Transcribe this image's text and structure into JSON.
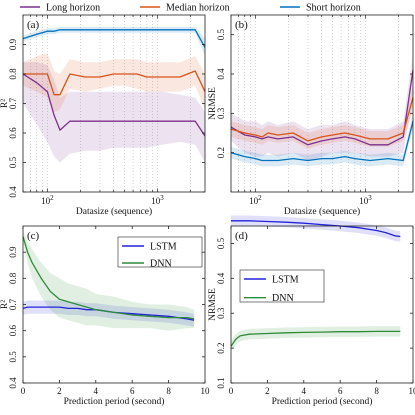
{
  "figure": {
    "legend_top": [
      {
        "label": "Long horizon",
        "color": "#7e2f8e"
      },
      {
        "label": "Median horizon",
        "color": "#d95319"
      },
      {
        "label": "Short horizon",
        "color": "#0072bd"
      }
    ]
  },
  "chart_data": [
    {
      "type": "line",
      "panel_label": "(a)",
      "xlabel": "Datasize (sequence)",
      "ylabel": "R²",
      "xscale": "log",
      "xlim": [
        60,
        2700
      ],
      "ylim": [
        0.4,
        1.0
      ],
      "xticks": [
        {
          "v": 100,
          "b": "10",
          "e": "2"
        },
        {
          "v": 1000,
          "b": "10",
          "e": "3"
        }
      ],
      "yticks": [
        0.4,
        0.5,
        0.6,
        0.7,
        0.8,
        0.9
      ],
      "grid": "vertical dotted",
      "legend": "top, shared",
      "x": [
        60,
        80,
        100,
        115,
        130,
        160,
        220,
        300,
        400,
        500,
        650,
        800,
        1100,
        1600,
        2200,
        2700
      ],
      "series": [
        {
          "name": "Long horizon",
          "color": "#7e2f8e",
          "values": [
            0.8,
            0.77,
            0.74,
            0.66,
            0.61,
            0.64,
            0.64,
            0.64,
            0.64,
            0.64,
            0.64,
            0.64,
            0.64,
            0.64,
            0.64,
            0.59
          ],
          "lower": [
            0.7,
            0.63,
            0.57,
            0.52,
            0.5,
            0.53,
            0.54,
            0.54,
            0.55,
            0.55,
            0.55,
            0.55,
            0.56,
            0.57,
            0.56,
            0.5
          ],
          "upper": [
            0.84,
            0.84,
            0.83,
            0.78,
            0.72,
            0.74,
            0.74,
            0.74,
            0.74,
            0.74,
            0.74,
            0.74,
            0.74,
            0.73,
            0.72,
            0.67
          ]
        },
        {
          "name": "Median horizon",
          "color": "#d95319",
          "values": [
            0.8,
            0.8,
            0.8,
            0.73,
            0.73,
            0.8,
            0.79,
            0.79,
            0.8,
            0.8,
            0.8,
            0.79,
            0.79,
            0.79,
            0.81,
            0.74
          ],
          "lower": [
            0.76,
            0.74,
            0.72,
            0.67,
            0.68,
            0.75,
            0.74,
            0.75,
            0.76,
            0.76,
            0.75,
            0.74,
            0.74,
            0.74,
            0.76,
            0.68
          ],
          "upper": [
            0.84,
            0.86,
            0.87,
            0.81,
            0.8,
            0.85,
            0.84,
            0.84,
            0.85,
            0.85,
            0.85,
            0.84,
            0.84,
            0.84,
            0.86,
            0.8
          ]
        },
        {
          "name": "Short horizon",
          "color": "#0072bd",
          "values": [
            0.92,
            0.935,
            0.945,
            0.945,
            0.95,
            0.95,
            0.95,
            0.95,
            0.95,
            0.95,
            0.95,
            0.95,
            0.95,
            0.95,
            0.95,
            0.89
          ],
          "lower": [
            0.91,
            0.925,
            0.935,
            0.935,
            0.94,
            0.94,
            0.94,
            0.94,
            0.94,
            0.94,
            0.94,
            0.94,
            0.94,
            0.94,
            0.94,
            0.86
          ],
          "upper": [
            0.93,
            0.945,
            0.955,
            0.955,
            0.96,
            0.96,
            0.96,
            0.96,
            0.96,
            0.96,
            0.96,
            0.96,
            0.96,
            0.96,
            0.96,
            0.92
          ]
        }
      ]
    },
    {
      "type": "line",
      "panel_label": "(b)",
      "xlabel": "Datasize (sequence)",
      "ylabel": "NRMSE",
      "xscale": "log",
      "xlim": [
        60,
        2700
      ],
      "ylim": [
        0.1,
        0.55
      ],
      "xticks": [
        {
          "v": 100,
          "b": "10",
          "e": "2"
        },
        {
          "v": 1000,
          "b": "10",
          "e": "3"
        }
      ],
      "yticks": [
        0.2,
        0.3,
        0.4,
        0.5
      ],
      "grid": "vertical dotted",
      "legend": "top, shared",
      "x": [
        60,
        80,
        100,
        115,
        130,
        160,
        220,
        300,
        400,
        500,
        650,
        800,
        1100,
        1600,
        2200,
        2700
      ],
      "series": [
        {
          "name": "Long horizon",
          "color": "#7e2f8e",
          "values": [
            0.265,
            0.245,
            0.24,
            0.235,
            0.24,
            0.235,
            0.24,
            0.22,
            0.23,
            0.235,
            0.24,
            0.235,
            0.22,
            0.22,
            0.24,
            0.41
          ],
          "lower": [
            0.23,
            0.2,
            0.19,
            0.19,
            0.2,
            0.19,
            0.2,
            0.18,
            0.19,
            0.2,
            0.2,
            0.2,
            0.19,
            0.19,
            0.2,
            0.33
          ],
          "upper": [
            0.3,
            0.28,
            0.28,
            0.27,
            0.28,
            0.27,
            0.28,
            0.26,
            0.27,
            0.27,
            0.28,
            0.27,
            0.26,
            0.26,
            0.28,
            0.45
          ]
        },
        {
          "name": "Median horizon",
          "color": "#d95319",
          "values": [
            0.26,
            0.25,
            0.245,
            0.24,
            0.25,
            0.245,
            0.25,
            0.23,
            0.24,
            0.245,
            0.25,
            0.245,
            0.235,
            0.235,
            0.25,
            0.34
          ],
          "lower": [
            0.24,
            0.23,
            0.225,
            0.22,
            0.23,
            0.225,
            0.23,
            0.21,
            0.22,
            0.225,
            0.23,
            0.225,
            0.215,
            0.215,
            0.23,
            0.31
          ],
          "upper": [
            0.28,
            0.27,
            0.265,
            0.26,
            0.27,
            0.265,
            0.27,
            0.25,
            0.26,
            0.265,
            0.27,
            0.265,
            0.255,
            0.255,
            0.27,
            0.37
          ]
        },
        {
          "name": "Short horizon",
          "color": "#0072bd",
          "values": [
            0.2,
            0.19,
            0.185,
            0.18,
            0.18,
            0.18,
            0.185,
            0.18,
            0.185,
            0.185,
            0.19,
            0.185,
            0.18,
            0.185,
            0.18,
            0.28
          ],
          "lower": [
            0.185,
            0.175,
            0.17,
            0.165,
            0.165,
            0.165,
            0.17,
            0.165,
            0.17,
            0.17,
            0.175,
            0.17,
            0.165,
            0.17,
            0.165,
            0.26
          ],
          "upper": [
            0.215,
            0.205,
            0.2,
            0.195,
            0.195,
            0.195,
            0.2,
            0.195,
            0.2,
            0.2,
            0.205,
            0.2,
            0.195,
            0.2,
            0.195,
            0.3
          ]
        }
      ]
    },
    {
      "type": "line",
      "panel_label": "(c)",
      "xlabel": "Prediction period (second)",
      "ylabel": "R²",
      "xlim": [
        0,
        10
      ],
      "ylim": [
        0.4,
        1.0
      ],
      "xticks": [
        0,
        2,
        4,
        6,
        8,
        10
      ],
      "yticks": [
        0.4,
        0.5,
        0.6,
        0.7,
        0.8,
        0.9
      ],
      "grid": "off",
      "legend": "top-right",
      "x": [
        0,
        0.25,
        0.5,
        1,
        1.5,
        2,
        2.5,
        3,
        3.5,
        4,
        5,
        6,
        7,
        8,
        9,
        9.4
      ],
      "series": [
        {
          "name": "LSTM",
          "color": "#2222dd",
          "values": [
            0.685,
            0.69,
            0.69,
            0.69,
            0.69,
            0.69,
            0.685,
            0.685,
            0.68,
            0.68,
            0.67,
            0.665,
            0.66,
            0.655,
            0.645,
            0.64
          ],
          "lower": [
            0.66,
            0.665,
            0.665,
            0.665,
            0.665,
            0.665,
            0.66,
            0.66,
            0.655,
            0.655,
            0.645,
            0.64,
            0.635,
            0.63,
            0.62,
            0.615
          ],
          "upper": [
            0.71,
            0.715,
            0.715,
            0.715,
            0.715,
            0.715,
            0.71,
            0.71,
            0.705,
            0.705,
            0.695,
            0.69,
            0.685,
            0.68,
            0.67,
            0.665
          ]
        },
        {
          "name": "DNN",
          "color": "#2e8b3a",
          "values": [
            0.96,
            0.9,
            0.86,
            0.8,
            0.75,
            0.72,
            0.71,
            0.7,
            0.69,
            0.68,
            0.67,
            0.66,
            0.655,
            0.65,
            0.65,
            0.645
          ],
          "lower": [
            0.94,
            0.86,
            0.8,
            0.73,
            0.68,
            0.65,
            0.64,
            0.63,
            0.62,
            0.62,
            0.61,
            0.61,
            0.61,
            0.6,
            0.61,
            0.61
          ],
          "upper": [
            0.98,
            0.94,
            0.91,
            0.86,
            0.82,
            0.8,
            0.78,
            0.77,
            0.76,
            0.74,
            0.73,
            0.71,
            0.7,
            0.7,
            0.69,
            0.68
          ]
        }
      ]
    },
    {
      "type": "line",
      "panel_label": "(d)",
      "xlabel": "Prediction period (second)",
      "ylabel": "NRMSE",
      "xlim": [
        0,
        10
      ],
      "ylim": [
        0.1,
        0.55
      ],
      "xticks": [
        0,
        2,
        4,
        6,
        8,
        10
      ],
      "yticks": [
        0.1,
        0.2,
        0.3,
        0.4,
        0.5
      ],
      "grid": "off",
      "legend": "center",
      "x": [
        0,
        0.25,
        0.5,
        1,
        2,
        3,
        4,
        5,
        6,
        7,
        8,
        8.5,
        9,
        9.3
      ],
      "series": [
        {
          "name": "LSTM",
          "color": "#2222dd",
          "values": [
            0.565,
            0.565,
            0.565,
            0.565,
            0.563,
            0.561,
            0.558,
            0.554,
            0.55,
            0.545,
            0.537,
            0.531,
            0.522,
            0.52
          ],
          "lower": [
            0.55,
            0.55,
            0.55,
            0.55,
            0.548,
            0.546,
            0.543,
            0.539,
            0.535,
            0.53,
            0.522,
            0.516,
            0.507,
            0.505
          ],
          "upper": [
            0.58,
            0.58,
            0.58,
            0.58,
            0.578,
            0.576,
            0.573,
            0.569,
            0.565,
            0.56,
            0.552,
            0.546,
            0.537,
            0.535
          ]
        },
        {
          "name": "DNN",
          "color": "#2e8b3a",
          "values": [
            0.205,
            0.225,
            0.235,
            0.24,
            0.242,
            0.244,
            0.245,
            0.246,
            0.247,
            0.247,
            0.248,
            0.248,
            0.248,
            0.248
          ],
          "lower": [
            0.19,
            0.21,
            0.22,
            0.225,
            0.227,
            0.229,
            0.23,
            0.231,
            0.232,
            0.232,
            0.233,
            0.233,
            0.233,
            0.233
          ],
          "upper": [
            0.22,
            0.24,
            0.25,
            0.255,
            0.257,
            0.259,
            0.26,
            0.261,
            0.262,
            0.262,
            0.263,
            0.263,
            0.263,
            0.263
          ]
        }
      ]
    }
  ]
}
